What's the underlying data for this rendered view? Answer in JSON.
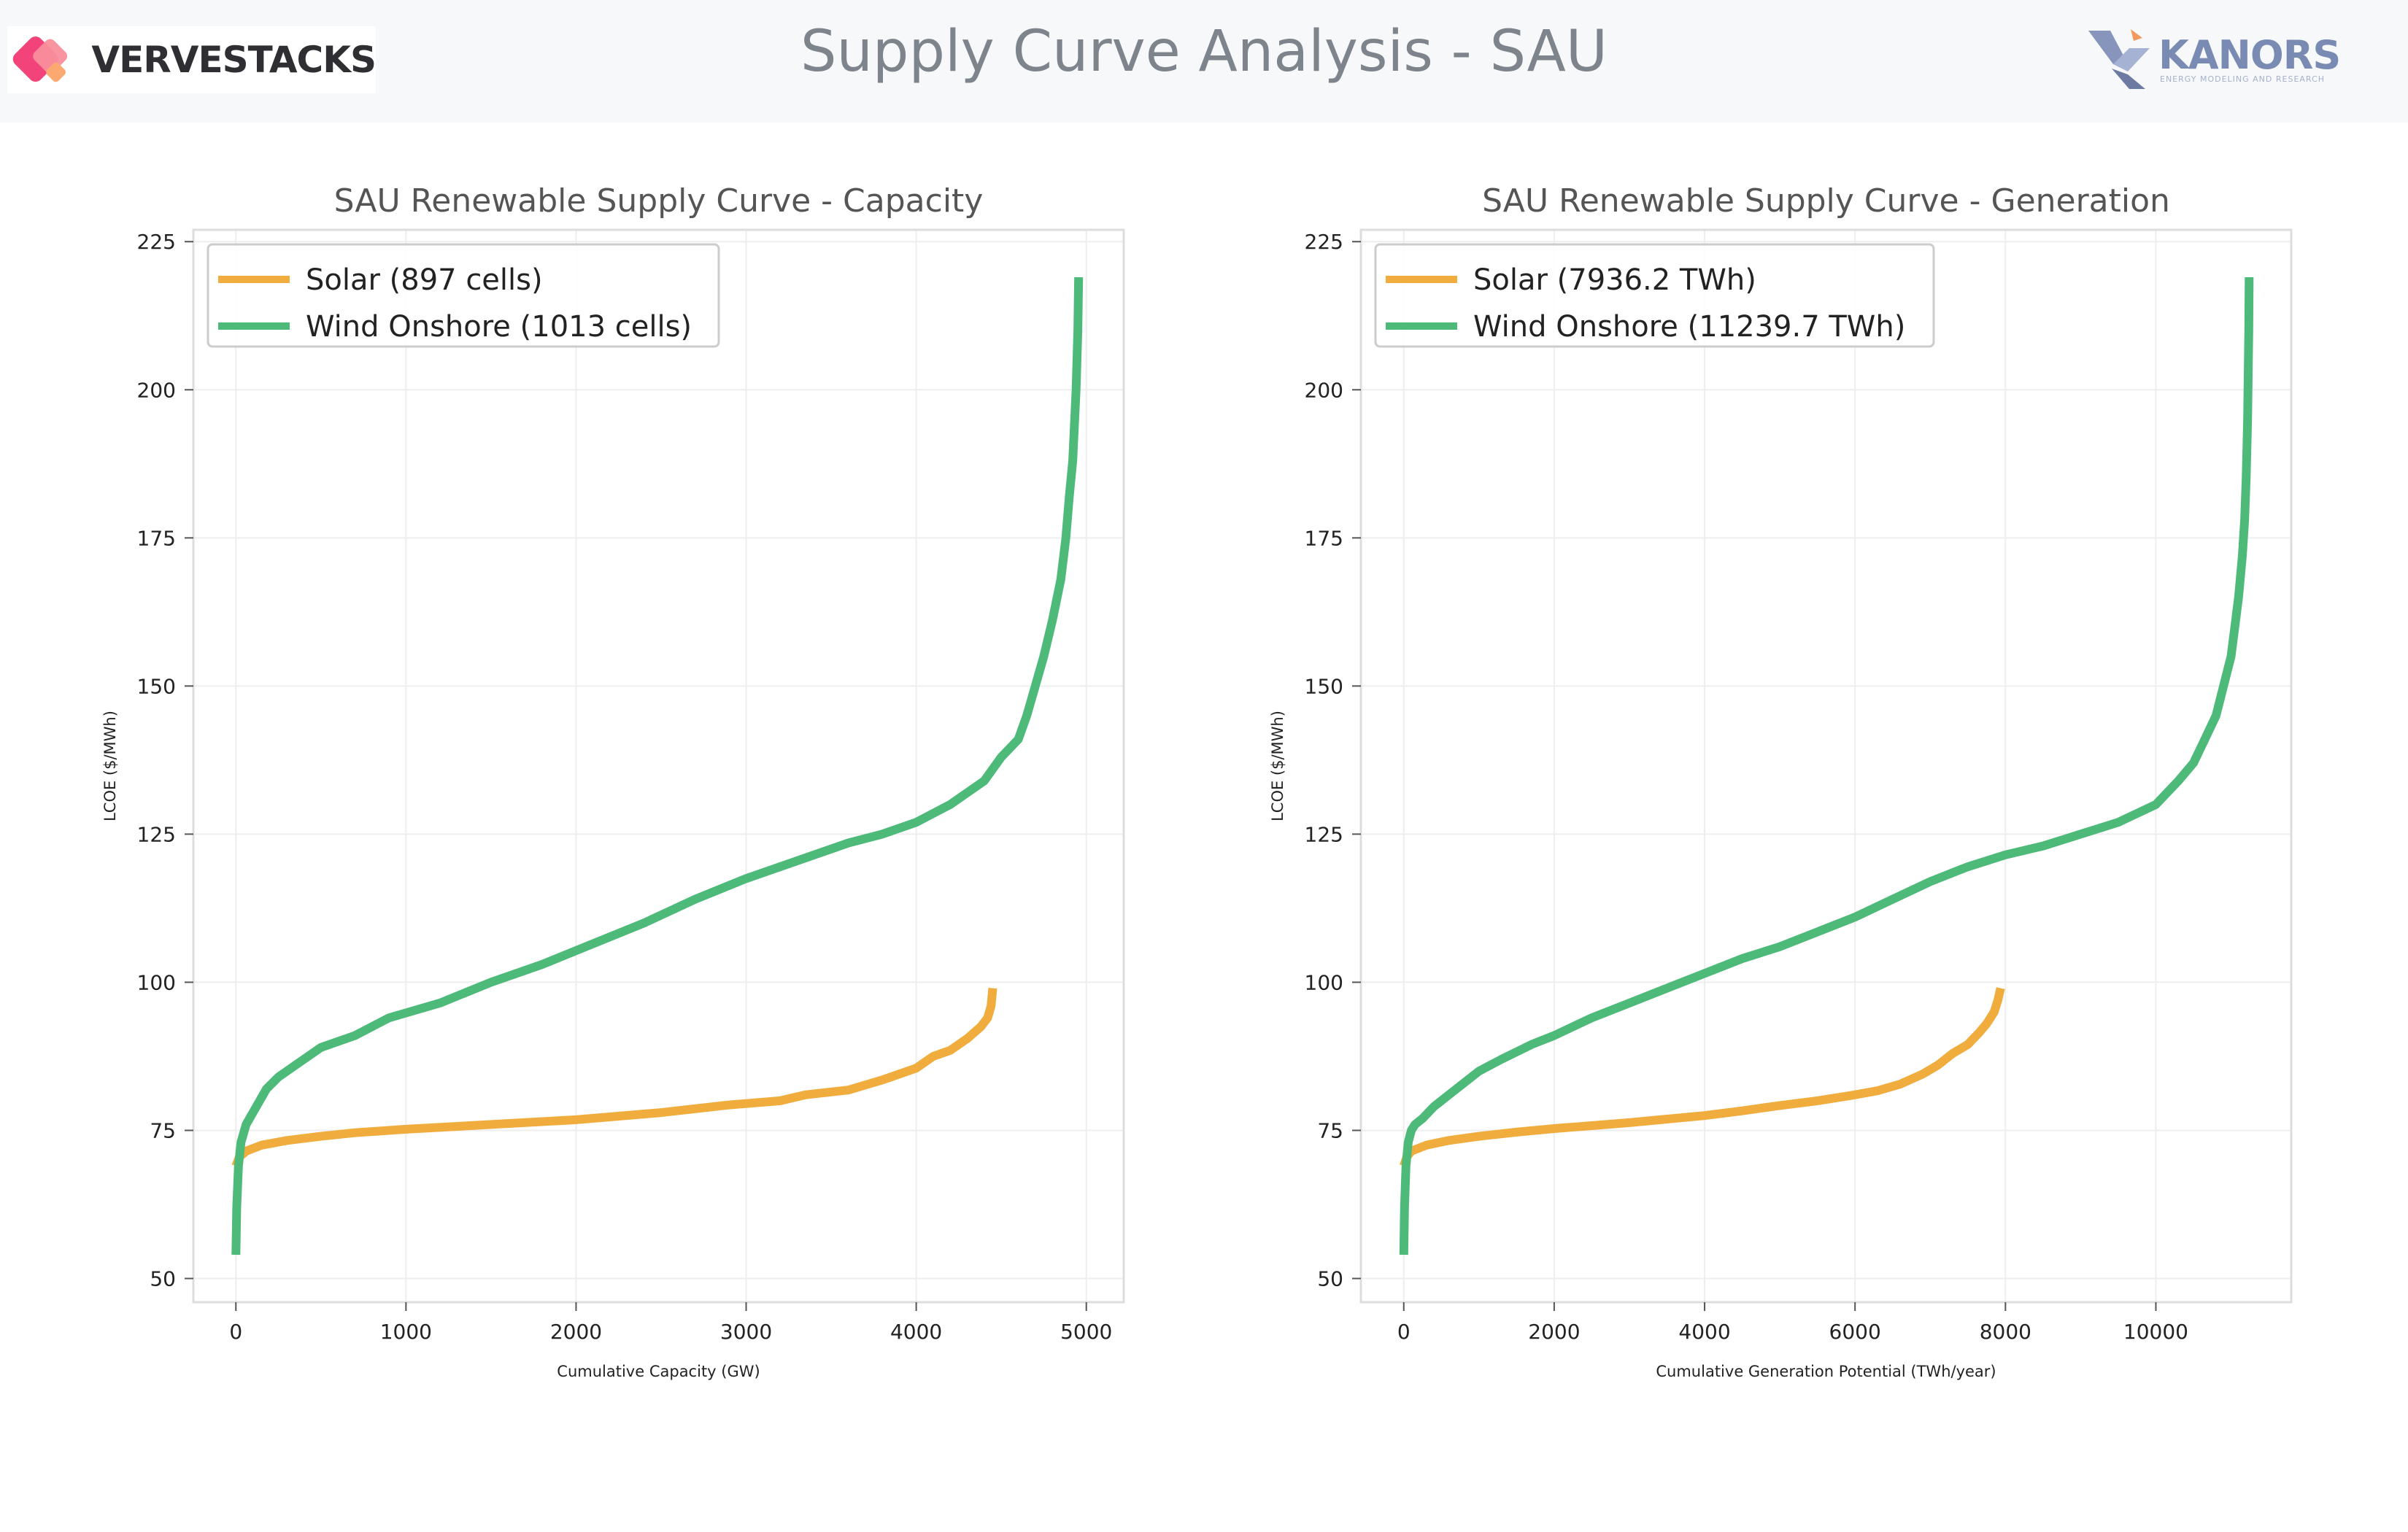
{
  "page": {
    "title": "Supply Curve Analysis - SAU",
    "logo_left": "VERVESTACKS",
    "logo_right": "KANORS",
    "logo_right_tagline": "ENERGY MODELING AND RESEARCH"
  },
  "colors": {
    "solar": "#f0ad3e",
    "wind": "#4dba79",
    "frame": "#dddddd",
    "grid": "#eeeeee",
    "axis_text": "#222222",
    "title_text": "#555555"
  },
  "chart_data": [
    {
      "type": "line",
      "title": "SAU Renewable Supply Curve - Capacity",
      "xlabel": "Cumulative Capacity (GW)",
      "ylabel": "LCOE ($/MWh)",
      "xlim": [
        -250,
        5220
      ],
      "ylim": [
        46,
        227
      ],
      "xticks": [
        0,
        1000,
        2000,
        3000,
        4000,
        5000
      ],
      "yticks": [
        50,
        75,
        100,
        125,
        150,
        175,
        200,
        225
      ],
      "grid": true,
      "legend_position": "upper-left",
      "series": [
        {
          "name": "Solar (897 cells)",
          "color": "solar",
          "x": [
            0,
            20,
            60,
            150,
            300,
            500,
            700,
            1000,
            1500,
            2000,
            2500,
            2900,
            3200,
            3350,
            3600,
            3800,
            4000,
            4100,
            4200,
            4300,
            4380,
            4420,
            4440,
            4450
          ],
          "y": [
            69,
            70.5,
            71.5,
            72.5,
            73.3,
            74,
            74.6,
            75.2,
            76,
            76.8,
            78,
            79.3,
            80,
            81,
            81.8,
            83.5,
            85.5,
            87.5,
            88.5,
            90.5,
            92.5,
            94,
            96,
            99
          ]
        },
        {
          "name": "Wind Onshore (1013 cells)",
          "color": "wind",
          "x": [
            0,
            5,
            15,
            30,
            60,
            100,
            140,
            180,
            250,
            350,
            500,
            700,
            900,
            1200,
            1500,
            1800,
            2100,
            2400,
            2700,
            3000,
            3300,
            3600,
            3800,
            4000,
            4200,
            4400,
            4500,
            4600,
            4650,
            4700,
            4750,
            4800,
            4850,
            4880,
            4900,
            4920,
            4940,
            4950,
            4955
          ],
          "y": [
            54,
            62,
            69,
            73,
            76,
            78,
            80,
            82,
            84,
            86,
            89,
            91,
            94,
            96.5,
            100,
            103,
            106.5,
            110,
            114,
            117.5,
            120.5,
            123.5,
            125,
            127,
            130,
            134,
            138,
            141,
            145,
            150,
            155,
            161,
            168,
            175,
            182,
            188,
            200,
            210,
            219
          ]
        }
      ]
    },
    {
      "type": "line",
      "title": "SAU Renewable Supply Curve - Generation",
      "xlabel": "Cumulative Generation Potential (TWh/year)",
      "ylabel": "LCOE ($/MWh)",
      "xlim": [
        -570,
        11800
      ],
      "ylim": [
        46,
        227
      ],
      "xticks": [
        0,
        2000,
        4000,
        6000,
        8000,
        10000
      ],
      "yticks": [
        50,
        75,
        100,
        125,
        150,
        175,
        200,
        225
      ],
      "grid": true,
      "legend_position": "upper-left",
      "series": [
        {
          "name": "Solar (7936.2 TWh)",
          "color": "solar",
          "x": [
            0,
            40,
            100,
            300,
            600,
            1000,
            1500,
            2000,
            2500,
            3000,
            3500,
            4000,
            4500,
            5000,
            5500,
            6000,
            6300,
            6600,
            6900,
            7100,
            7300,
            7500,
            7650,
            7750,
            7850,
            7900,
            7936
          ],
          "y": [
            69,
            70.5,
            71.5,
            72.5,
            73.3,
            74,
            74.7,
            75.3,
            75.8,
            76.3,
            76.9,
            77.5,
            78.3,
            79.2,
            80,
            81,
            81.7,
            82.8,
            84.5,
            86,
            88,
            89.5,
            91.5,
            93,
            95,
            97,
            99
          ]
        },
        {
          "name": "Wind Onshore (11239.7 TWh)",
          "color": "wind",
          "x": [
            0,
            10,
            30,
            60,
            100,
            150,
            250,
            400,
            600,
            800,
            1000,
            1300,
            1700,
            2000,
            2500,
            3000,
            3500,
            4000,
            4500,
            5000,
            5500,
            6000,
            6500,
            7000,
            7500,
            8000,
            8500,
            9000,
            9500,
            10000,
            10300,
            10500,
            10650,
            10800,
            10900,
            11000,
            11050,
            11100,
            11150,
            11180,
            11200,
            11220,
            11235,
            11240
          ],
          "y": [
            54,
            62,
            69,
            73,
            75,
            76,
            77,
            79,
            81,
            83,
            85,
            87,
            89.5,
            91,
            94,
            96.5,
            99,
            101.5,
            104,
            106,
            108.5,
            111,
            114,
            117,
            119.5,
            121.5,
            123,
            125,
            127,
            130,
            134,
            137,
            141,
            145,
            150,
            155,
            160,
            165,
            172,
            178,
            185,
            195,
            210,
            219
          ]
        }
      ]
    }
  ]
}
